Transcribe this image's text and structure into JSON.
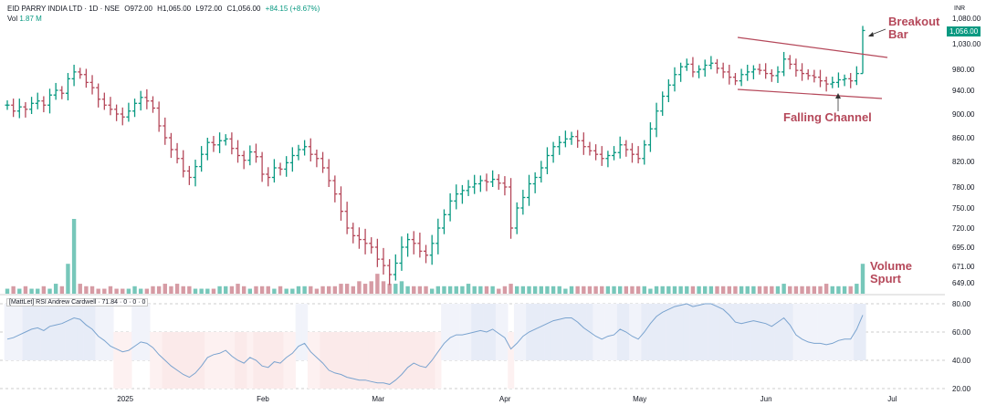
{
  "header": {
    "symbol": "EID PARRY INDIA LTD · 1D · NSE",
    "open": "O972.00",
    "high": "H1,065.00",
    "low": "L972.00",
    "close": "C1,056.00",
    "change": "+84.15 (+8.67%)",
    "vol_label": "Vol",
    "vol_value": "1.87 M",
    "currency": "INR",
    "last_price": "1,056.00"
  },
  "annotations": {
    "breakout": "Breakout\nBar",
    "channel": "Falling Channel",
    "volume": "Volume\nSpurt"
  },
  "rsi_header": "[MattLet] RSI Andrew Cardwell · 71.84 · 0 · 0 · 0",
  "colors": {
    "up": "#089981",
    "down": "#b5485a",
    "rsi_line_bull": "#7aa3cf",
    "rsi_line_bear": "#6b6b6b",
    "annotation": "#b5485a"
  },
  "chart_data": [
    {
      "type": "ohlc",
      "title": "",
      "y_ticks": [
        1080,
        1030,
        980,
        940,
        900,
        860,
        820,
        780,
        750,
        720,
        695,
        671,
        649
      ],
      "y_tick_labels": [
        "1,080.00",
        "1,030.00",
        "980.00",
        "940.00",
        "900.00",
        "860.00",
        "820.00",
        "780.00",
        "750.00",
        "720.00",
        "695.00",
        "671.00",
        "649.00"
      ],
      "x_tick_labels": [
        "2025",
        "Feb",
        "Mar",
        "Apr",
        "May",
        "Jun",
        "Jul"
      ],
      "x_tick_index": [
        19,
        42,
        61,
        82,
        104,
        125,
        146
      ],
      "close": [
        915,
        905,
        912,
        908,
        918,
        922,
        915,
        932,
        940,
        935,
        962,
        975,
        970,
        955,
        945,
        925,
        915,
        908,
        900,
        895,
        905,
        918,
        928,
        922,
        910,
        880,
        860,
        840,
        825,
        805,
        795,
        812,
        832,
        852,
        848,
        855,
        858,
        842,
        830,
        822,
        836,
        828,
        800,
        795,
        810,
        808,
        818,
        830,
        840,
        845,
        832,
        825,
        810,
        790,
        770,
        745,
        720,
        710,
        705,
        700,
        695,
        680,
        672,
        660,
        675,
        695,
        705,
        700,
        690,
        685,
        700,
        720,
        740,
        760,
        770,
        775,
        780,
        785,
        790,
        788,
        792,
        786,
        780,
        720,
        750,
        765,
        785,
        795,
        810,
        830,
        845,
        852,
        858,
        862,
        855,
        845,
        838,
        832,
        825,
        830,
        835,
        848,
        840,
        832,
        825,
        848,
        875,
        905,
        930,
        950,
        970,
        985,
        990,
        975,
        980,
        988,
        992,
        982,
        975,
        965,
        958,
        970,
        975,
        980,
        978,
        972,
        968,
        975,
        1000,
        990,
        978,
        972,
        968,
        965,
        958,
        952,
        955,
        960,
        962,
        958,
        972,
        1056
      ]
    },
    {
      "type": "bar",
      "title": "",
      "series_note": "volume",
      "values_relative": [
        2,
        3,
        2,
        3,
        2,
        2,
        3,
        2,
        4,
        3,
        12,
        30,
        4,
        3,
        3,
        2,
        2,
        3,
        2,
        2,
        2,
        3,
        2,
        2,
        3,
        3,
        4,
        3,
        4,
        3,
        3,
        2,
        2,
        2,
        2,
        3,
        3,
        3,
        4,
        3,
        2,
        3,
        3,
        3,
        2,
        3,
        2,
        2,
        3,
        3,
        3,
        2,
        3,
        3,
        3,
        4,
        4,
        3,
        5,
        4,
        5,
        8,
        5,
        4,
        4,
        5,
        3,
        3,
        3,
        3,
        2,
        3,
        3,
        3,
        3,
        3,
        4,
        3,
        3,
        3,
        3,
        2,
        3,
        4,
        3,
        3,
        3,
        3,
        3,
        3,
        3,
        3,
        2,
        3,
        3,
        3,
        3,
        3,
        3,
        3,
        3,
        3,
        3,
        3,
        3,
        3,
        2,
        3,
        3,
        3,
        3,
        3,
        3,
        3,
        3,
        3,
        3,
        3,
        3,
        3,
        3,
        3,
        3,
        3,
        3,
        3,
        3,
        3,
        4,
        3,
        3,
        3,
        3,
        3,
        3,
        4,
        3,
        3,
        3,
        3,
        4,
        12
      ]
    },
    {
      "type": "line",
      "title": "",
      "y_ticks": [
        80,
        60,
        40,
        20
      ],
      "y_tick_labels": [
        "80.00",
        "60.00",
        "40.00",
        "20.00"
      ],
      "values": [
        55,
        56,
        58,
        60,
        62,
        63,
        61,
        64,
        65,
        66,
        68,
        70,
        69,
        65,
        62,
        57,
        54,
        50,
        48,
        46,
        47,
        50,
        53,
        52,
        49,
        44,
        40,
        36,
        33,
        30,
        28,
        31,
        36,
        42,
        44,
        45,
        47,
        43,
        40,
        38,
        42,
        40,
        36,
        35,
        39,
        38,
        42,
        45,
        50,
        52,
        46,
        42,
        38,
        33,
        31,
        30,
        28,
        27,
        26,
        26,
        25,
        24,
        24,
        23,
        26,
        30,
        35,
        38,
        36,
        35,
        40,
        46,
        52,
        56,
        58,
        58,
        59,
        60,
        61,
        60,
        62,
        59,
        56,
        48,
        52,
        57,
        60,
        62,
        64,
        66,
        68,
        69,
        70,
        70,
        67,
        63,
        60,
        57,
        55,
        57,
        58,
        62,
        60,
        57,
        55,
        60,
        66,
        71,
        74,
        76,
        78,
        79,
        80,
        78,
        79,
        80,
        80,
        78,
        76,
        72,
        67,
        66,
        67,
        68,
        67,
        66,
        64,
        67,
        70,
        65,
        58,
        55,
        53,
        52,
        52,
        51,
        52,
        54,
        55,
        55,
        62,
        72
      ]
    }
  ]
}
